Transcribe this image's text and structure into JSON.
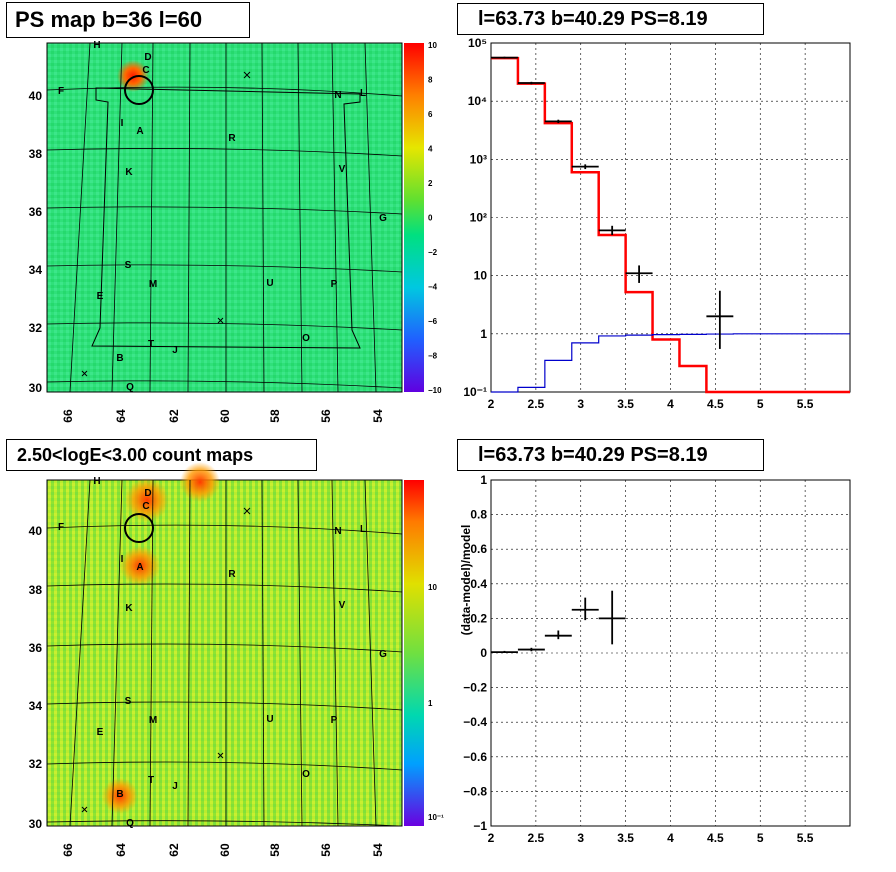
{
  "panels": {
    "tl_title": "PS map b=36 l=60",
    "tr_title": "l=63.73 b=40.29 PS=8.19",
    "bl_title": "2.50<logE<3.00 count maps",
    "br_title": "l=63.73 b=40.29 PS=8.19"
  },
  "map": {
    "x_ticks": [
      "66",
      "64",
      "62",
      "60",
      "58",
      "56",
      "54"
    ],
    "y_ticks": [
      "40",
      "38",
      "36",
      "34",
      "32",
      "30"
    ],
    "sources": [
      "H",
      "D",
      "C",
      "F",
      "N",
      "L",
      "I",
      "A",
      "R",
      "K",
      "V",
      "G",
      "S",
      "E",
      "M",
      "U",
      "P",
      "O",
      "T",
      "J",
      "B",
      "Q"
    ],
    "ps_colorbar_ticks": [
      "10",
      "8",
      "6",
      "4",
      "2",
      "0",
      "−2",
      "−4",
      "−6",
      "−8",
      "−10"
    ],
    "count_colorbar_ticks": [
      "10",
      "1",
      "10⁻¹"
    ]
  },
  "chart_data": [
    {
      "type": "step",
      "title": "l=63.73 b=40.29 PS=8.19",
      "xlabel": "",
      "ylabel": "",
      "xlim": [
        2,
        6
      ],
      "ylim": [
        0.1,
        100000
      ],
      "log_y": true,
      "x_ticks": [
        "2",
        "2.5",
        "3",
        "3.5",
        "4",
        "4.5",
        "5",
        "5.5"
      ],
      "y_ticks": [
        "10⁻¹",
        "1",
        "10",
        "10²",
        "10³",
        "10⁴",
        "10⁵"
      ],
      "grid": true,
      "series": [
        {
          "color": "#ff0000",
          "edges": [
            2,
            2.3,
            2.6,
            2.9,
            3.2,
            3.5,
            3.8,
            4.1,
            4.4,
            4.7,
            5.0,
            5.3,
            5.6,
            6.0
          ],
          "values": [
            55000,
            20000,
            4200,
            600,
            50,
            5.2,
            0.8,
            0.28,
            0.1,
            0.1,
            0.1,
            0.1,
            0.1
          ]
        },
        {
          "color": "#0000cc",
          "edges": [
            2,
            2.3,
            2.6,
            2.9,
            3.2,
            3.5,
            3.8,
            4.1,
            4.4,
            4.7,
            5.0,
            5.3,
            5.6,
            6.0
          ],
          "values": [
            0.1,
            0.12,
            0.35,
            0.7,
            0.92,
            0.95,
            0.97,
            0.98,
            0.99,
            1.0,
            1.0,
            1.0,
            1.0
          ]
        },
        {
          "color": "#000000",
          "points": [
            {
              "x": 2.15,
              "y": 56000,
              "dx": 0.15,
              "lo": 54000,
              "hi": 58000
            },
            {
              "x": 2.45,
              "y": 20500,
              "dx": 0.15,
              "lo": 19500,
              "hi": 21500
            },
            {
              "x": 2.75,
              "y": 4500,
              "dx": 0.15,
              "lo": 4200,
              "hi": 4800
            },
            {
              "x": 3.05,
              "y": 750,
              "dx": 0.15,
              "lo": 680,
              "hi": 820
            },
            {
              "x": 3.35,
              "y": 60,
              "dx": 0.15,
              "lo": 50,
              "hi": 72
            },
            {
              "x": 3.65,
              "y": 11,
              "dx": 0.15,
              "lo": 7.5,
              "hi": 15
            },
            {
              "x": 4.55,
              "y": 2,
              "dx": 0.15,
              "lo": 0.55,
              "hi": 5.5
            }
          ]
        }
      ]
    },
    {
      "type": "scatter",
      "title": "l=63.73 b=40.29 PS=8.19",
      "xlabel": "",
      "ylabel": "(data-model)/model",
      "xlim": [
        2,
        6
      ],
      "ylim": [
        -1,
        1
      ],
      "x_ticks": [
        "2",
        "2.5",
        "3",
        "3.5",
        "4",
        "4.5",
        "5",
        "5.5"
      ],
      "y_ticks": [
        "−1",
        "−0.8",
        "−0.6",
        "−0.4",
        "−0.2",
        "0",
        "0.2",
        "0.4",
        "0.6",
        "0.8",
        "1"
      ],
      "grid": true,
      "points": [
        {
          "x": 2.15,
          "y": 0.005,
          "dx": 0.15,
          "lo": 0.0,
          "hi": 0.012
        },
        {
          "x": 2.45,
          "y": 0.02,
          "dx": 0.15,
          "lo": 0.01,
          "hi": 0.03
        },
        {
          "x": 2.75,
          "y": 0.1,
          "dx": 0.15,
          "lo": 0.08,
          "hi": 0.13
        },
        {
          "x": 3.05,
          "y": 0.25,
          "dx": 0.15,
          "lo": 0.19,
          "hi": 0.32
        },
        {
          "x": 3.35,
          "y": 0.2,
          "dx": 0.15,
          "lo": 0.05,
          "hi": 0.36
        }
      ]
    }
  ]
}
